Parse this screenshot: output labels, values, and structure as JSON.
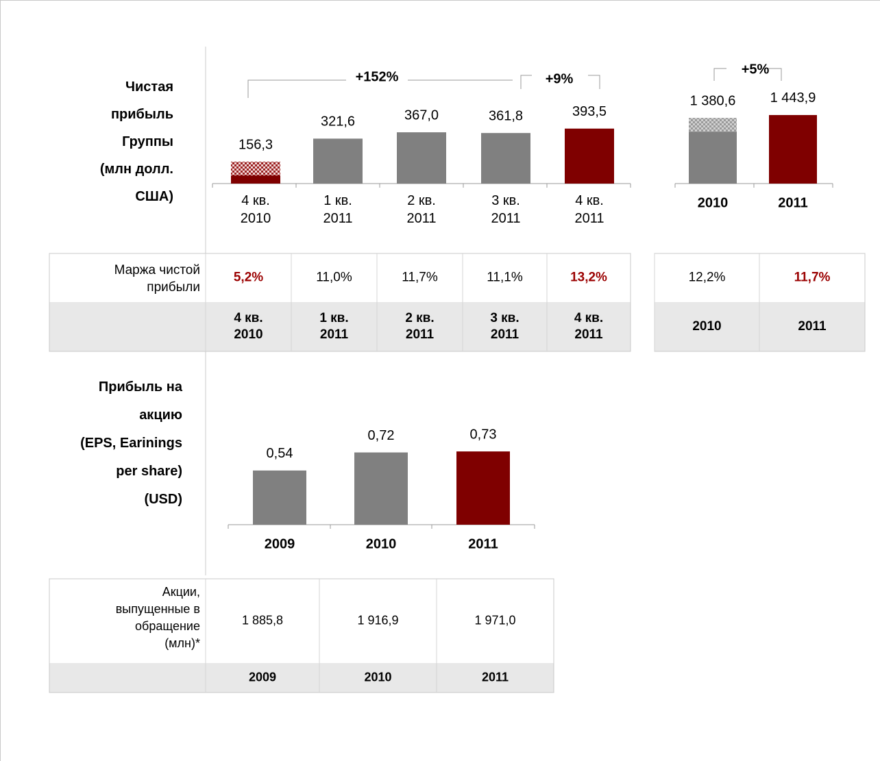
{
  "chart_data": [
    {
      "type": "bar",
      "label": "Чистая\nприбыль\nГруппы\n(млн долл.\nСША)",
      "categories": [
        "4 кв.\n2010",
        "1 кв.\n2011",
        "2 кв.\n2011",
        "3 кв.\n2011",
        "4 кв.\n2011"
      ],
      "values": [
        156.3,
        321.6,
        367.0,
        361.8,
        393.5
      ],
      "value_labels": [
        "156,3",
        "321,6",
        "367,0",
        "361,8",
        "393,5"
      ],
      "colors": [
        "#7f0000",
        "#808080",
        "#808080",
        "#808080",
        "#7f0000"
      ],
      "hatched": [
        true,
        false,
        false,
        false,
        false
      ],
      "bold_categories": false,
      "annotations": [
        "+152%",
        "+9%"
      ]
    },
    {
      "type": "bar",
      "categories": [
        "2010",
        "2011"
      ],
      "values": [
        1380.6,
        1443.9
      ],
      "value_labels": [
        "1 380,6",
        "1 443,9"
      ],
      "colors": [
        "#808080",
        "#7f0000"
      ],
      "hatched": [
        true,
        false
      ],
      "bold_categories": true,
      "annotations": [
        "+5%"
      ]
    },
    {
      "type": "bar",
      "label": "Прибыль на\nакцию\n(EPS, Earinings\nper share)\n\n(USD)",
      "categories": [
        "2009",
        "2010",
        "2011"
      ],
      "values": [
        0.54,
        0.72,
        0.73
      ],
      "value_labels": [
        "0,54",
        "0,72",
        "0,73"
      ],
      "colors": [
        "#808080",
        "#808080",
        "#7f0000"
      ],
      "hatched": [
        false,
        false,
        false
      ],
      "bold_categories": true
    }
  ],
  "tables": [
    {
      "row_label": "Маржа чистой\nприбыли",
      "values": [
        "5,2%",
        "11,0%",
        "11,7%",
        "11,1%",
        "13,2%"
      ],
      "highlight": [
        true,
        false,
        false,
        false,
        true
      ],
      "columns": [
        "4 кв.\n2010",
        "1 кв.\n2011",
        "2 кв.\n2011",
        "3 кв.\n2011",
        "4 кв.\n2011"
      ]
    },
    {
      "values": [
        "12,2%",
        "11,7%"
      ],
      "highlight": [
        false,
        true
      ],
      "columns": [
        "2010",
        "2011"
      ]
    },
    {
      "row_label": "Акции,\nвыпущенные в\nобращение\n(млн)*",
      "values": [
        "1 885,8",
        "1 916,9",
        "1 971,0"
      ],
      "highlight": [
        false,
        false,
        false
      ],
      "columns": [
        "2009",
        "2010",
        "2011"
      ]
    }
  ]
}
